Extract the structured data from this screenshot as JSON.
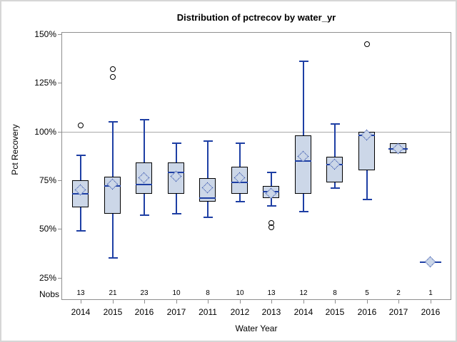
{
  "chart_data": {
    "type": "box",
    "title": "Distribution of pctrecov by water_yr",
    "xlabel": "Water Year",
    "ylabel": "Pct Recovery",
    "nobs_label": "Nobs",
    "y_ticks": [
      "150%",
      "125%",
      "100%",
      "75%",
      "50%",
      "25%"
    ],
    "y_tick_values": [
      150,
      125,
      100,
      75,
      50,
      25
    ],
    "ylim": [
      14,
      151
    ],
    "grid": "off",
    "legend": "none",
    "reference_line": 100,
    "categories": [
      "2014",
      "2015",
      "2016",
      "2017",
      "2011",
      "2012",
      "2013",
      "2014",
      "2015",
      "2016",
      "2017",
      "2016"
    ],
    "nobs": [
      13,
      21,
      23,
      10,
      8,
      10,
      13,
      12,
      8,
      5,
      2,
      1
    ],
    "boxes": [
      {
        "year": "2014",
        "nobs": 13,
        "low": 49,
        "q1": 61,
        "median": 68,
        "q3": 75,
        "high": 88,
        "mean": 70,
        "outliers": [
          103
        ]
      },
      {
        "year": "2015",
        "nobs": 21,
        "low": 35,
        "q1": 58,
        "median": 72,
        "q3": 77,
        "high": 105,
        "mean": 73,
        "outliers": [
          128,
          132
        ]
      },
      {
        "year": "2016",
        "nobs": 23,
        "low": 57,
        "q1": 68,
        "median": 73,
        "q3": 84,
        "high": 106,
        "mean": 76,
        "outliers": []
      },
      {
        "year": "2017",
        "nobs": 10,
        "low": 58,
        "q1": 68,
        "median": 79,
        "q3": 84,
        "high": 94,
        "mean": 77,
        "outliers": []
      },
      {
        "year": "2011",
        "nobs": 8,
        "low": 56,
        "q1": 64,
        "median": 66,
        "q3": 76,
        "high": 95,
        "mean": 71,
        "outliers": []
      },
      {
        "year": "2012",
        "nobs": 10,
        "low": 64,
        "q1": 68,
        "median": 74,
        "q3": 82,
        "high": 94,
        "mean": 76,
        "outliers": []
      },
      {
        "year": "2013",
        "nobs": 13,
        "low": 62,
        "q1": 66,
        "median": 69,
        "q3": 72,
        "high": 79,
        "mean": 68,
        "outliers": [
          53,
          51
        ]
      },
      {
        "year": "2014",
        "nobs": 12,
        "low": 59,
        "q1": 68,
        "median": 85,
        "q3": 98,
        "high": 136,
        "mean": 87,
        "outliers": []
      },
      {
        "year": "2015",
        "nobs": 8,
        "low": 71,
        "q1": 74,
        "median": 83,
        "q3": 87,
        "high": 104,
        "mean": 83,
        "outliers": []
      },
      {
        "year": "2016",
        "nobs": 5,
        "low": 65,
        "q1": 80,
        "median": 98,
        "q3": 100,
        "high": null,
        "mean": 98,
        "outliers": [
          145
        ]
      },
      {
        "year": "2017",
        "nobs": 2,
        "low": null,
        "q1": 89,
        "median": 91,
        "q3": 94,
        "high": null,
        "mean": 91,
        "outliers": []
      },
      {
        "year": "2016",
        "nobs": 1,
        "low": null,
        "q1": null,
        "median": 33,
        "q3": null,
        "high": null,
        "mean": 33,
        "outliers": []
      }
    ],
    "colors": {
      "box_fill": "#ccd7e8",
      "box_border": "#000000",
      "whisker": "#1e3fa4",
      "reference_line": "#a8a8a8",
      "frame": "#8f8f8f",
      "outlier": "#000000"
    }
  }
}
